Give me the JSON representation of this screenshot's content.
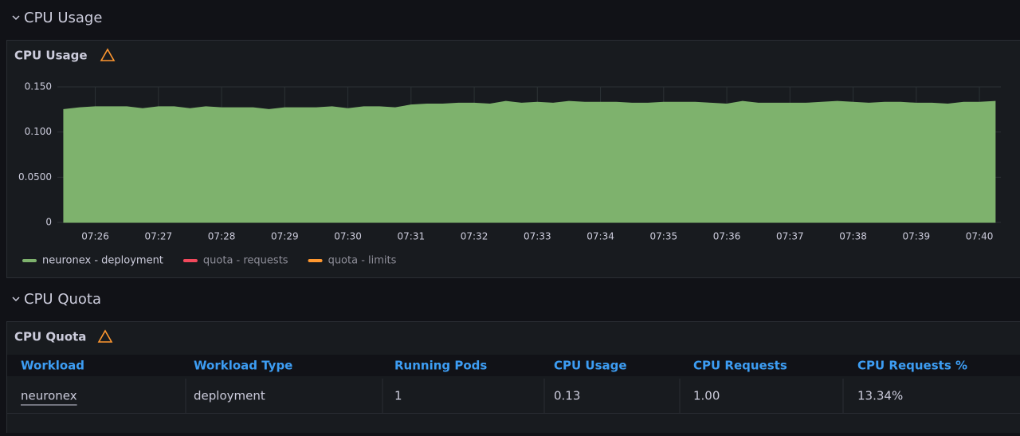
{
  "sections": [
    {
      "title": "CPU Usage"
    },
    {
      "title": "CPU Quota"
    }
  ],
  "chart_data": {
    "type": "area",
    "title": "CPU Usage",
    "x": [
      25.5,
      25.75,
      26,
      26.25,
      26.5,
      26.75,
      27,
      27.25,
      27.5,
      27.75,
      28,
      28.25,
      28.5,
      28.75,
      29,
      29.25,
      29.5,
      29.75,
      30,
      30.25,
      30.5,
      30.75,
      31,
      31.25,
      31.5,
      31.75,
      32,
      32.25,
      32.5,
      32.75,
      33,
      33.25,
      33.5,
      33.75,
      34,
      34.25,
      34.5,
      34.75,
      35,
      35.25,
      35.5,
      35.75,
      36,
      36.25,
      36.5,
      36.75,
      37,
      37.25,
      37.5,
      37.75,
      38,
      38.25,
      38.5,
      38.75,
      39,
      39.25,
      39.5,
      39.75,
      40,
      40.25
    ],
    "series": [
      {
        "name": "neuronex - deployment",
        "color": "#7eb26d",
        "values": [
          0.125,
          0.127,
          0.128,
          0.128,
          0.128,
          0.126,
          0.128,
          0.128,
          0.126,
          0.128,
          0.127,
          0.127,
          0.127,
          0.125,
          0.127,
          0.127,
          0.127,
          0.128,
          0.126,
          0.128,
          0.128,
          0.127,
          0.13,
          0.131,
          0.131,
          0.132,
          0.132,
          0.131,
          0.134,
          0.132,
          0.133,
          0.132,
          0.134,
          0.133,
          0.133,
          0.133,
          0.132,
          0.132,
          0.133,
          0.133,
          0.133,
          0.132,
          0.131,
          0.134,
          0.132,
          0.132,
          0.132,
          0.132,
          0.133,
          0.134,
          0.133,
          0.132,
          0.133,
          0.133,
          0.132,
          0.132,
          0.131,
          0.133,
          0.133,
          0.134
        ]
      },
      {
        "name": "quota - requests",
        "color": "#f2495c",
        "values": [
          null,
          null,
          null,
          null,
          null,
          null,
          null,
          null,
          null,
          null,
          null,
          null,
          null,
          null,
          null,
          null,
          null,
          null,
          null,
          null,
          null,
          null,
          null,
          null,
          null,
          null,
          null,
          null,
          null,
          null,
          null,
          null,
          null,
          null,
          null,
          null,
          null,
          null,
          null,
          null,
          null,
          null,
          null,
          null,
          null,
          null,
          null,
          null,
          null,
          null,
          null,
          null,
          null,
          null,
          null,
          null,
          null,
          null,
          null,
          null
        ]
      },
      {
        "name": "quota - limits",
        "color": "#ff9830",
        "values": [
          null,
          null,
          null,
          null,
          null,
          null,
          null,
          null,
          null,
          null,
          null,
          null,
          null,
          null,
          null,
          null,
          null,
          null,
          null,
          null,
          null,
          null,
          null,
          null,
          null,
          null,
          null,
          null,
          null,
          null,
          null,
          null,
          null,
          null,
          null,
          null,
          null,
          null,
          null,
          null,
          null,
          null,
          null,
          null,
          null,
          null,
          null,
          null,
          null,
          null,
          null,
          null,
          null,
          null,
          null,
          null,
          null,
          null,
          null,
          null
        ]
      }
    ],
    "xlim": [
      25.4,
      40.34
    ],
    "xticks": [
      {
        "value": 26,
        "label": "07:26"
      },
      {
        "value": 27,
        "label": "07:27"
      },
      {
        "value": 28,
        "label": "07:28"
      },
      {
        "value": 29,
        "label": "07:29"
      },
      {
        "value": 30,
        "label": "07:30"
      },
      {
        "value": 31,
        "label": "07:31"
      },
      {
        "value": 32,
        "label": "07:32"
      },
      {
        "value": 33,
        "label": "07:33"
      },
      {
        "value": 34,
        "label": "07:34"
      },
      {
        "value": 35,
        "label": "07:35"
      },
      {
        "value": 36,
        "label": "07:36"
      },
      {
        "value": 37,
        "label": "07:37"
      },
      {
        "value": 38,
        "label": "07:38"
      },
      {
        "value": 39,
        "label": "07:39"
      },
      {
        "value": 40,
        "label": "07:40"
      }
    ],
    "ylim": [
      0,
      0.15
    ],
    "yticks": [
      0,
      {
        "value": 0.05,
        "label": "0.0500"
      },
      {
        "value": 0.1,
        "label": "0.100"
      },
      {
        "value": 0.15,
        "label": "0.150"
      }
    ],
    "grid": true
  },
  "table": {
    "title": "CPU Quota",
    "header": [
      "Workload",
      "Workload Type",
      "Running Pods",
      "CPU Usage",
      "CPU Requests",
      "CPU Requests %"
    ],
    "rows": [
      [
        "neuronex",
        "deployment",
        "1",
        "0.13",
        "1.00",
        "13.34%"
      ]
    ]
  }
}
